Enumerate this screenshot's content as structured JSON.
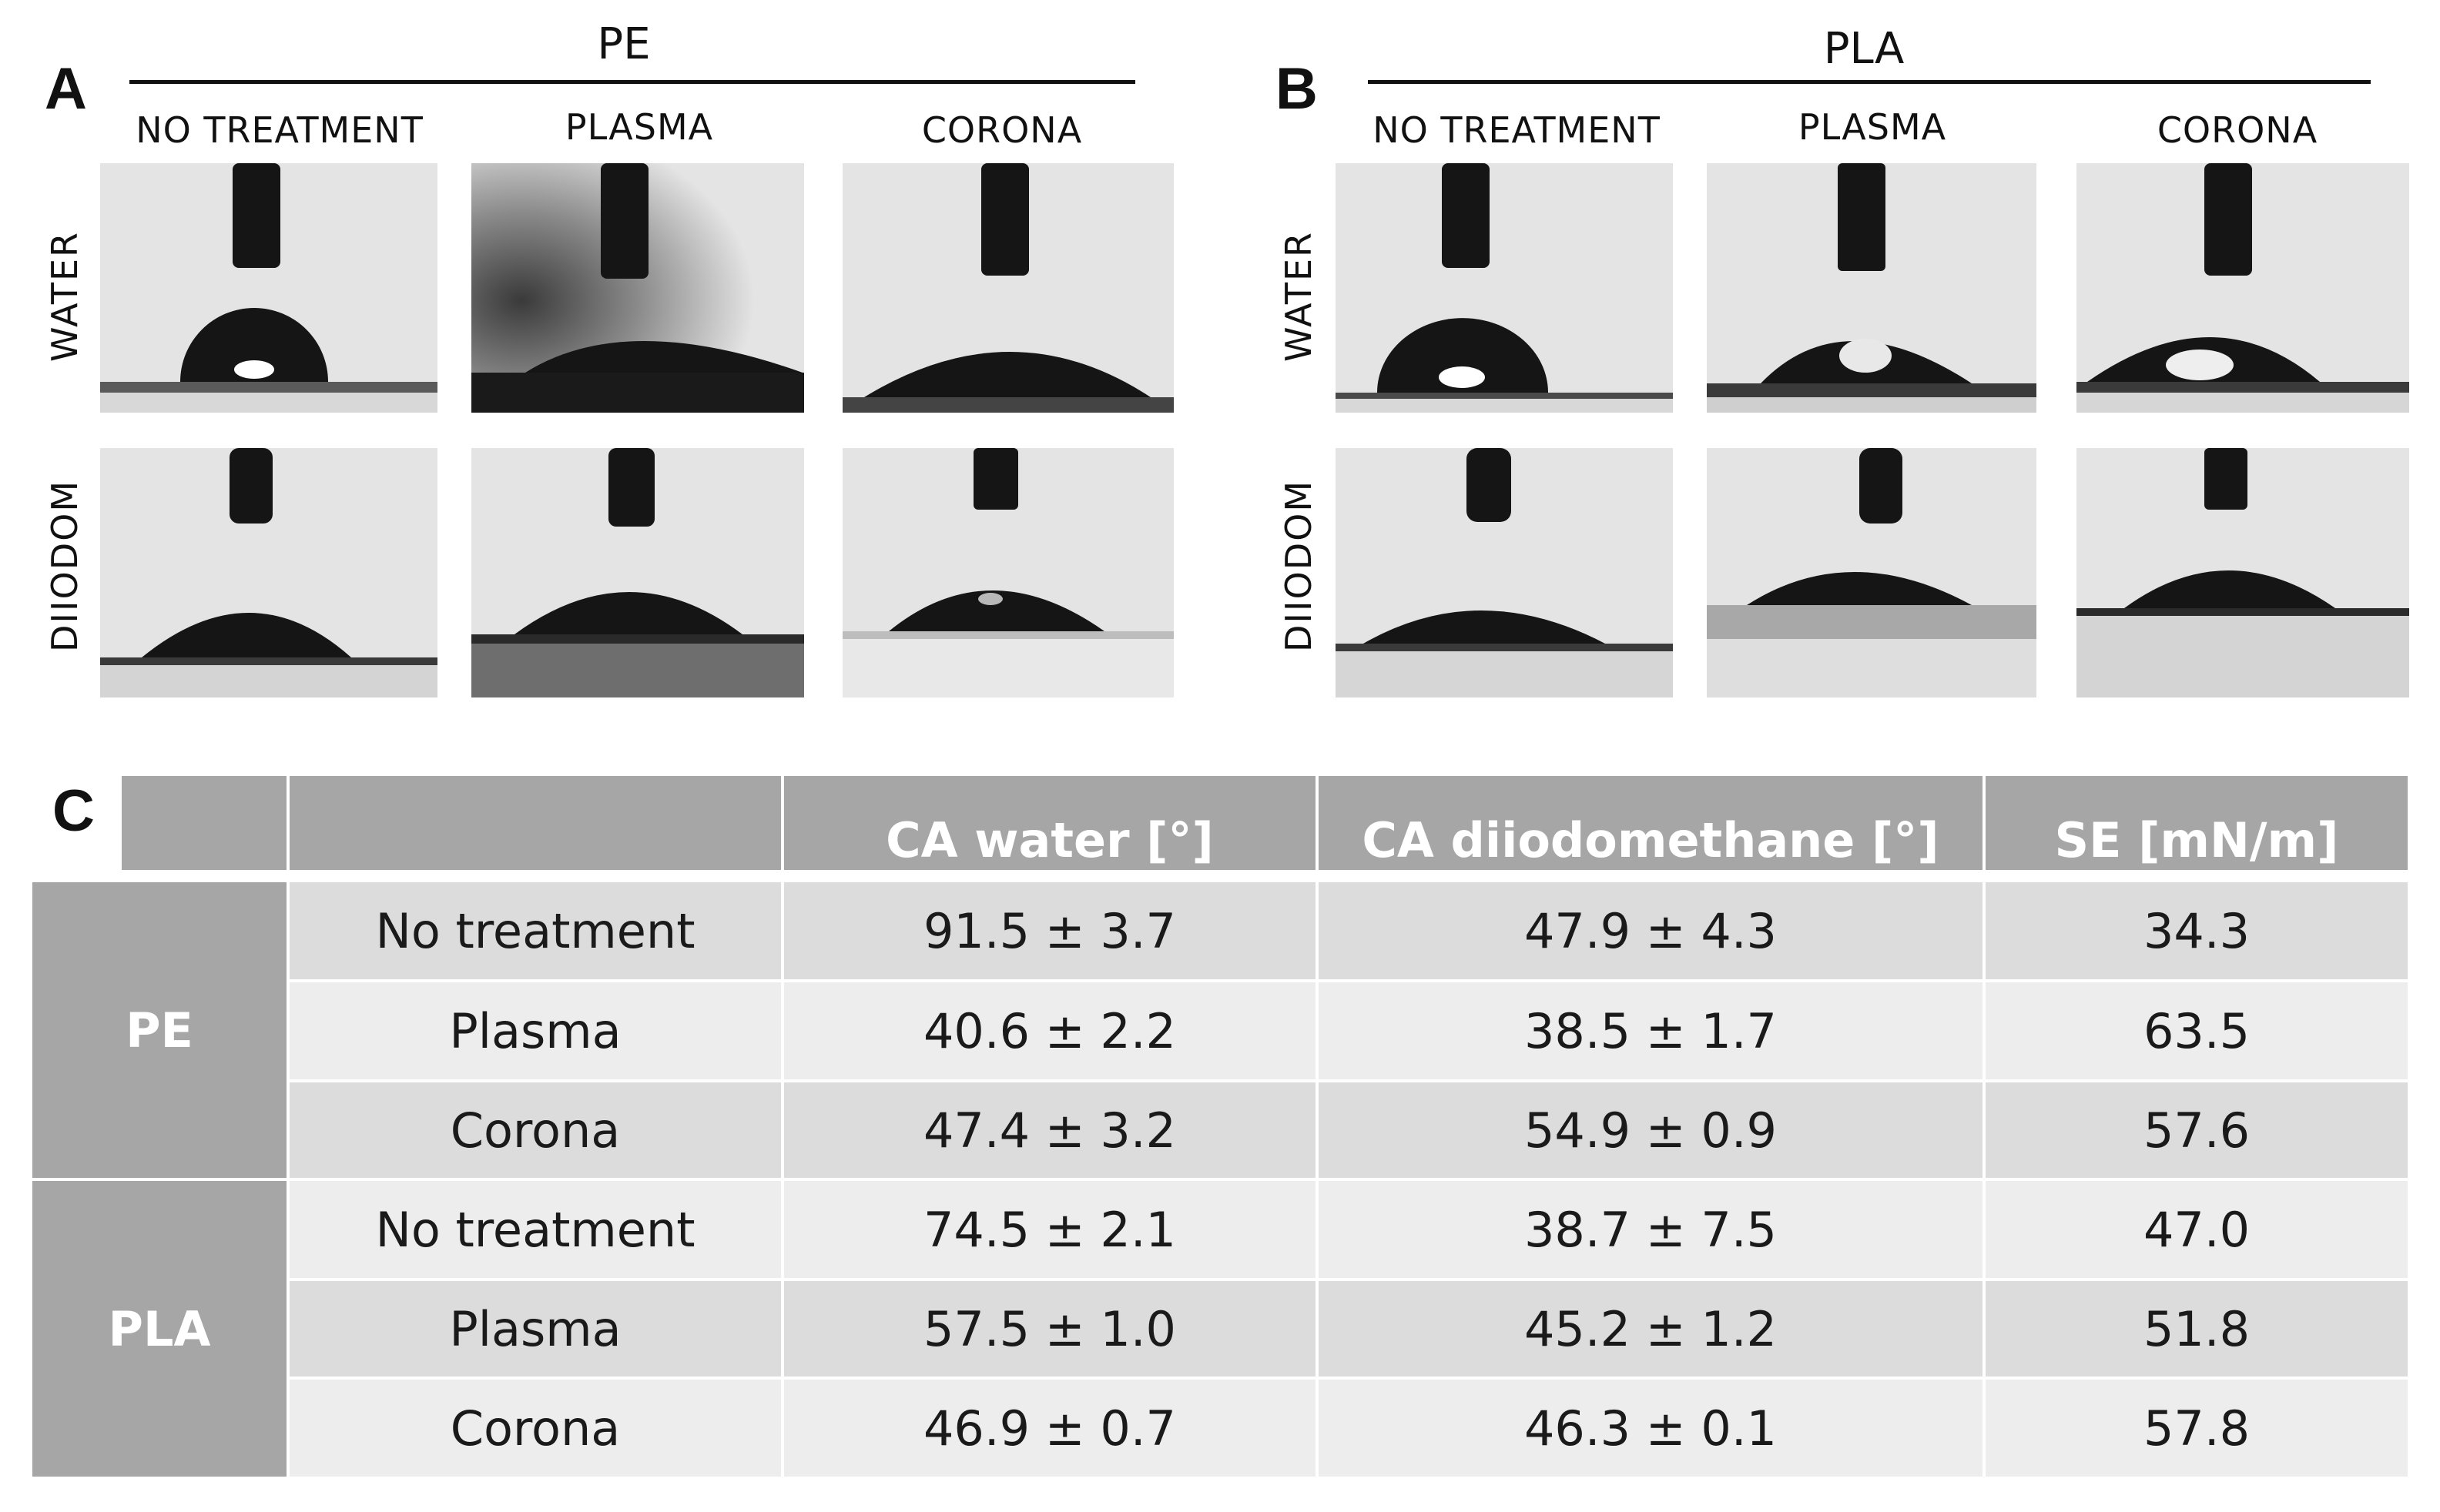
{
  "panels": {
    "a": {
      "letter": "A",
      "group": "PE"
    },
    "b": {
      "letter": "B",
      "group": "PLA"
    },
    "c": {
      "letter": "C"
    }
  },
  "image_columns": [
    "NO TREATMENT",
    "PLASMA",
    "CORONA"
  ],
  "image_rows": [
    "WATER",
    "DIIODOM"
  ],
  "table": {
    "headers": [
      "",
      "",
      "CA water [°]",
      "CA diiodomethane [°]",
      "SE [mN/m]"
    ],
    "groups": [
      "PE",
      "PLA"
    ],
    "rows": [
      {
        "treatment": "No treatment",
        "ca_water": "91.5 ± 3.7",
        "ca_diiodomethane": "47.9 ± 4.3",
        "se": "34.3"
      },
      {
        "treatment": "Plasma",
        "ca_water": "40.6 ± 2.2",
        "ca_diiodomethane": "38.5 ± 1.7",
        "se": "63.5"
      },
      {
        "treatment": "Corona",
        "ca_water": "47.4 ± 3.2",
        "ca_diiodomethane": "54.9 ± 0.9",
        "se": "57.6"
      },
      {
        "treatment": "No treatment",
        "ca_water": "74.5 ± 2.1",
        "ca_diiodomethane": "38.7 ± 7.5",
        "se": "47.0"
      },
      {
        "treatment": "Plasma",
        "ca_water": "57.5 ± 1.0",
        "ca_diiodomethane": "45.2 ± 1.2",
        "se": "51.8"
      },
      {
        "treatment": "Corona",
        "ca_water": "46.9 ± 0.7",
        "ca_diiodomethane": "46.3 ± 0.1",
        "se": "57.8"
      }
    ]
  }
}
